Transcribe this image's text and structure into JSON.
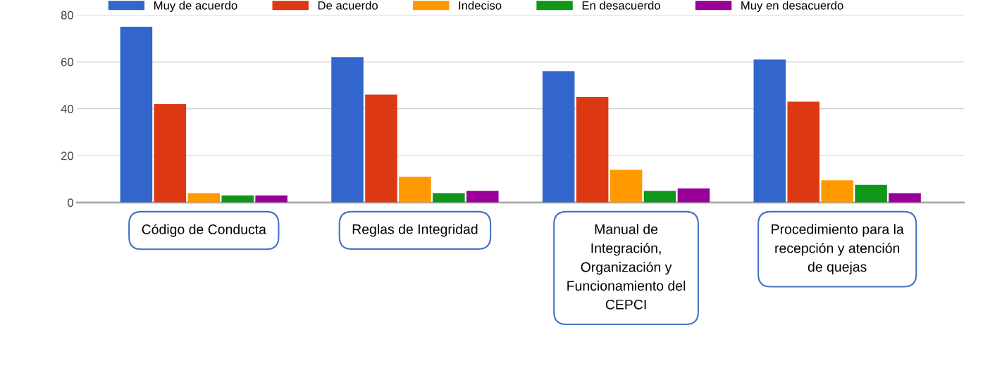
{
  "chart_data": {
    "type": "bar",
    "categories": [
      "Código de Conducta",
      "Reglas de Integridad",
      "Manual de\nIntegración,\nOrganización y\nFuncionamiento del\nCEPCI",
      "Procedimiento para la\nrecepción y atención\nde quejas"
    ],
    "series": [
      {
        "name": "Muy de acuerdo",
        "color": "#3366cc",
        "values": [
          75,
          62,
          56,
          61
        ]
      },
      {
        "name": "De acuerdo",
        "color": "#dc3912",
        "values": [
          42,
          46,
          45,
          43
        ]
      },
      {
        "name": "Indeciso",
        "color": "#ff9900",
        "values": [
          4,
          11,
          14,
          9.5
        ]
      },
      {
        "name": "En desacuerdo",
        "color": "#109618",
        "values": [
          3,
          4,
          5,
          7.5
        ]
      },
      {
        "name": "Muy en desacuerdo",
        "color": "#990099",
        "values": [
          3,
          5,
          6,
          4
        ]
      }
    ],
    "ylim": [
      0,
      80
    ],
    "yticks": [
      0,
      20,
      40,
      60,
      80
    ],
    "grid": "y",
    "legend": "top"
  }
}
